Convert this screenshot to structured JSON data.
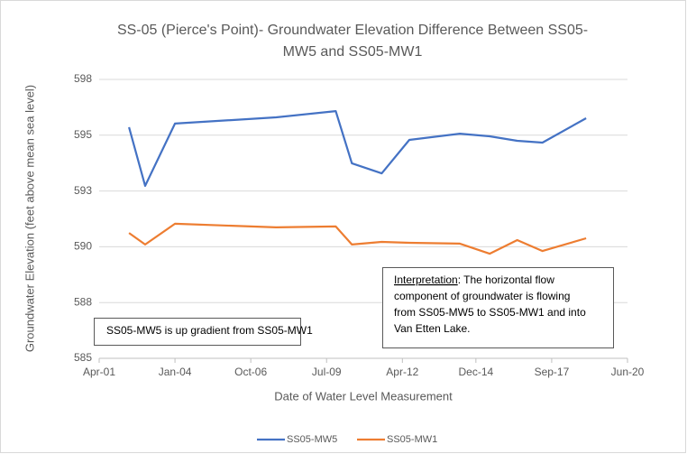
{
  "chart_data": {
    "type": "line",
    "title": [
      "SS-05 (Pierce's Point)- Groundwater Elevation Difference Between SS05-",
      "MW5 and SS05-MW1"
    ],
    "x_label": "Date of Water Level Measurement",
    "y_label": "Groundwater Elevation (feet above mean sea level)",
    "x": [
      "2002-05",
      "2002-12",
      "2004-01",
      "2007-09",
      "2009-11",
      "2010-06",
      "2011-07",
      "2012-07",
      "2014-05",
      "2015-06",
      "2016-06",
      "2017-05",
      "2018-12"
    ],
    "series": [
      {
        "name": "SS05-MW5",
        "color": "#4472c4",
        "values": [
          595.36,
          592.73,
          595.52,
          595.8,
          596.08,
          593.74,
          593.29,
          594.79,
          595.07,
          594.95,
          594.75,
          594.67,
          595.76
        ]
      },
      {
        "name": "SS05-MW1",
        "color": "#ed7d31",
        "values": [
          590.62,
          590.1,
          591.03,
          590.87,
          590.91,
          590.1,
          590.22,
          590.18,
          590.14,
          589.69,
          590.3,
          589.81,
          590.38
        ]
      }
    ],
    "xlim": [
      "2001-04",
      "2020-06"
    ],
    "xticks": [
      {
        "value": "2001-04",
        "label": "Apr-01"
      },
      {
        "value": "2004-01",
        "label": "Jan-04"
      },
      {
        "value": "2006-10",
        "label": "Oct-06"
      },
      {
        "value": "2009-07",
        "label": "Jul-09"
      },
      {
        "value": "2012-04",
        "label": "Apr-12"
      },
      {
        "value": "2014-12",
        "label": "Dec-14"
      },
      {
        "value": "2017-09",
        "label": "Sep-17"
      },
      {
        "value": "2020-06",
        "label": "Jun-20"
      }
    ],
    "ylim": [
      585,
      597.5
    ],
    "yticks": [
      585,
      {
        "value": 587.5,
        "label": "588"
      },
      590,
      {
        "value": 592.5,
        "label": "593"
      },
      595,
      {
        "value": 597.5,
        "label": "598"
      }
    ],
    "grid": true,
    "legend": "bottom",
    "annotations": [
      {
        "lines": [
          "SS05-MW5 is up gradient from SS05-MW1"
        ]
      },
      {
        "heading": "Interpretation",
        "lines": [
          ":  The horizontal flow",
          "component of groundwater is flowing",
          "from SS05-MW5 to SS05-MW1 and into",
          "Van Etten Lake."
        ]
      }
    ]
  }
}
